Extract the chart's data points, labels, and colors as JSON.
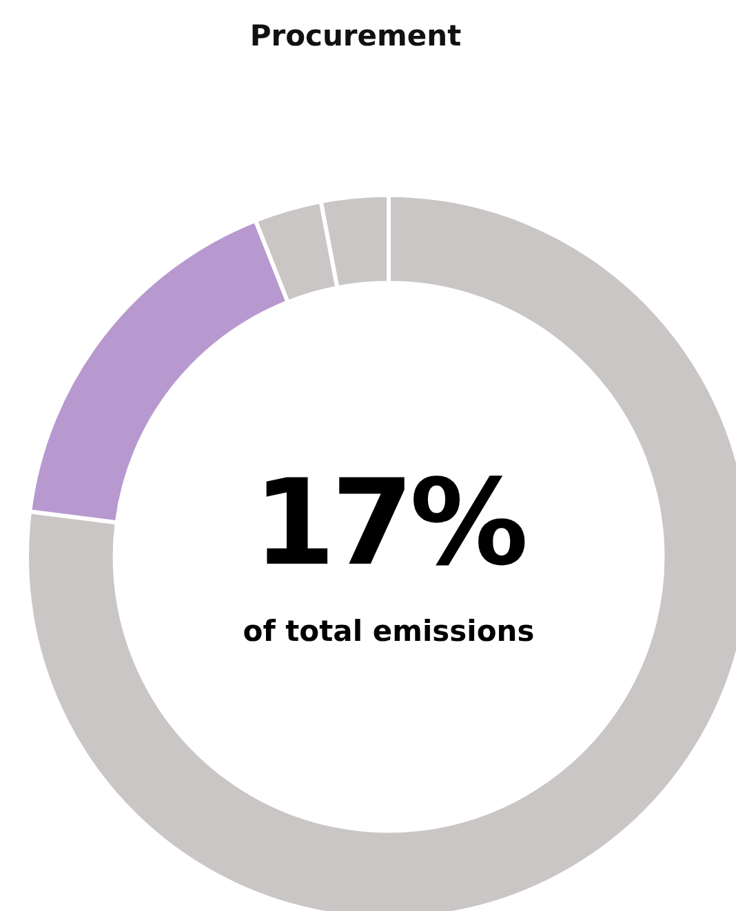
{
  "chart_data": {
    "type": "donut",
    "title": "Procurement",
    "categories": [
      null,
      null,
      null,
      null
    ],
    "values": [
      77,
      17,
      3,
      3
    ],
    "colors": [
      "#c9c6c5",
      "#b799cf",
      "#c9c6c5",
      "#c9c6c5"
    ],
    "legend": false,
    "annotations": [
      "17%",
      "of total emissions"
    ]
  }
}
